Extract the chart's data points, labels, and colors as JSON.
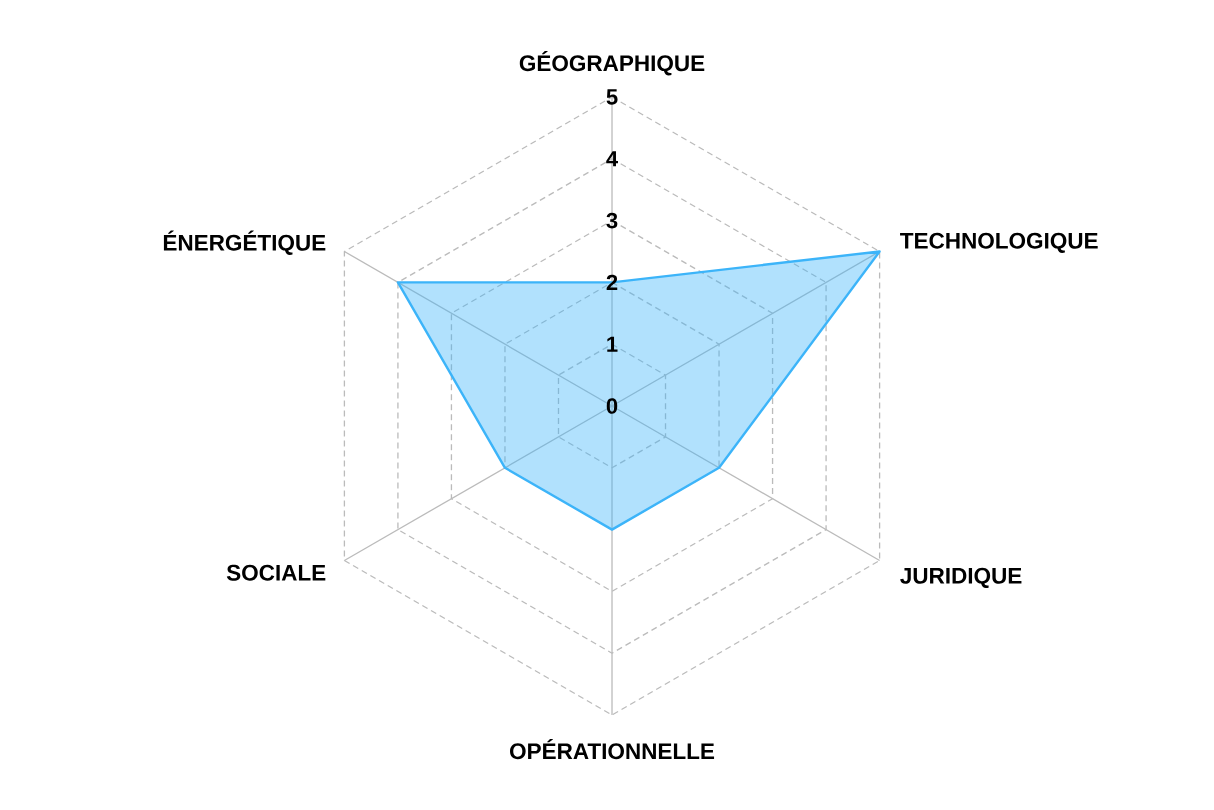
{
  "chart_data": {
    "type": "radar",
    "categories": [
      "GÉOGRAPHIQUE",
      "TECHNOLOGIQUE",
      "JURIDIQUE",
      "OPÉRATIONNELLE",
      "SOCIALE",
      "ÉNERGÉTIQUE"
    ],
    "series": [
      {
        "color": "#3cb4f9",
        "values": [
          2,
          5,
          2,
          2,
          2,
          4
        ]
      }
    ],
    "ylim": [
      0,
      5
    ],
    "yticks": [
      0,
      1,
      2,
      3,
      4,
      5
    ],
    "grid": true
  }
}
